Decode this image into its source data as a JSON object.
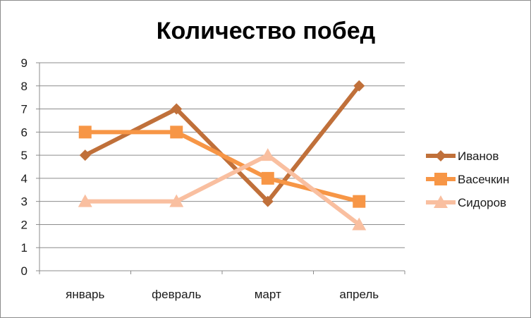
{
  "chart_data": {
    "type": "line",
    "title": "Количество побед",
    "xlabel": "",
    "ylabel": "",
    "categories": [
      "январь",
      "февраль",
      "март",
      "апрель"
    ],
    "ylim": [
      0,
      9
    ],
    "yticks": [
      0,
      1,
      2,
      3,
      4,
      5,
      6,
      7,
      8,
      9
    ],
    "grid": true,
    "legend_position": "right",
    "series": [
      {
        "name": "Иванов",
        "values": [
          5,
          7,
          3,
          8
        ],
        "color": "#C0703A",
        "marker": "diamond"
      },
      {
        "name": "Васечкин",
        "values": [
          6,
          6,
          4,
          3
        ],
        "color": "#F79646",
        "marker": "square"
      },
      {
        "name": "Сидоров",
        "values": [
          3,
          3,
          5,
          2
        ],
        "color": "#F9BFA0",
        "marker": "triangle"
      }
    ]
  }
}
